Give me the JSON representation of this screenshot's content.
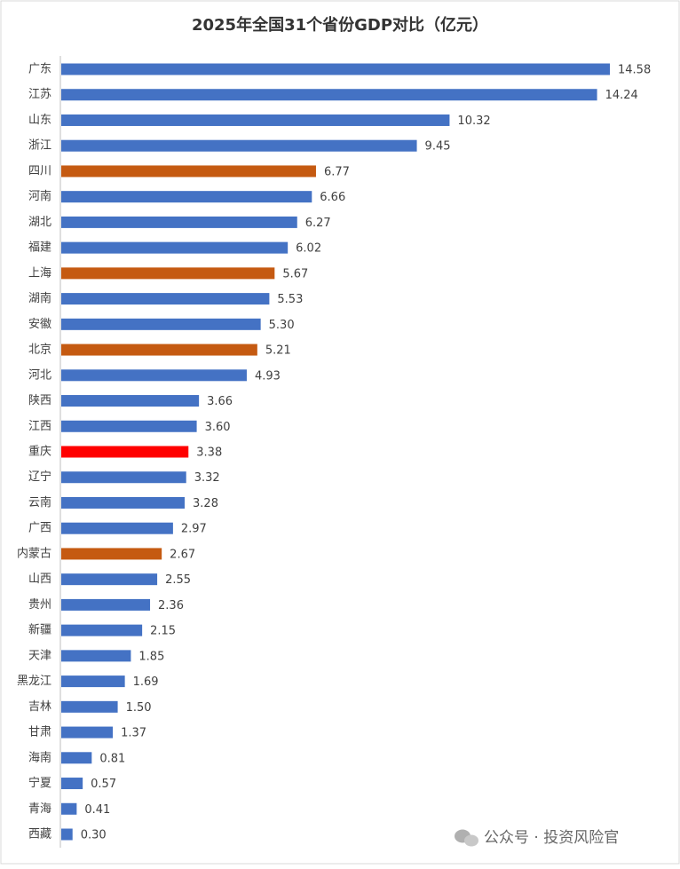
{
  "chart_data": {
    "type": "bar",
    "orientation": "horizontal",
    "title": "2025年全国31个省份GDP对比（亿元）",
    "categories": [
      "广东",
      "江苏",
      "山东",
      "浙江",
      "四川",
      "河南",
      "湖北",
      "福建",
      "上海",
      "湖南",
      "安徽",
      "北京",
      "河北",
      "陕西",
      "江西",
      "重庆",
      "辽宁",
      "云南",
      "广西",
      "内蒙古",
      "山西",
      "贵州",
      "新疆",
      "天津",
      "黑龙江",
      "吉林",
      "甘肃",
      "海南",
      "宁夏",
      "青海",
      "西藏"
    ],
    "values": [
      14.58,
      14.24,
      10.32,
      9.45,
      6.77,
      6.66,
      6.27,
      6.02,
      5.67,
      5.53,
      5.3,
      5.21,
      4.93,
      3.66,
      3.6,
      3.38,
      3.32,
      3.28,
      2.97,
      2.67,
      2.55,
      2.36,
      2.15,
      1.85,
      1.69,
      1.5,
      1.37,
      0.81,
      0.57,
      0.41,
      0.3
    ],
    "value_labels": [
      "14.58",
      "14.24",
      "10.32",
      "9.45",
      "6.77",
      "6.66",
      "6.27",
      "6.02",
      "5.67",
      "5.53",
      "5.30",
      "5.21",
      "4.93",
      "3.66",
      "3.60",
      "3.38",
      "3.32",
      "3.28",
      "2.97",
      "2.67",
      "2.55",
      "2.36",
      "2.15",
      "1.85",
      "1.69",
      "1.50",
      "1.37",
      "0.81",
      "0.57",
      "0.41",
      "0.30"
    ],
    "colors": [
      "#4472c4",
      "#4472c4",
      "#4472c4",
      "#4472c4",
      "#c55a11",
      "#4472c4",
      "#4472c4",
      "#4472c4",
      "#c55a11",
      "#4472c4",
      "#4472c4",
      "#c55a11",
      "#4472c4",
      "#4472c4",
      "#4472c4",
      "#ff0000",
      "#4472c4",
      "#4472c4",
      "#4472c4",
      "#c55a11",
      "#4472c4",
      "#4472c4",
      "#4472c4",
      "#4472c4",
      "#4472c4",
      "#4472c4",
      "#4472c4",
      "#4472c4",
      "#4472c4",
      "#4472c4",
      "#4472c4"
    ],
    "watermark": "公众号 · 投资风险官"
  }
}
